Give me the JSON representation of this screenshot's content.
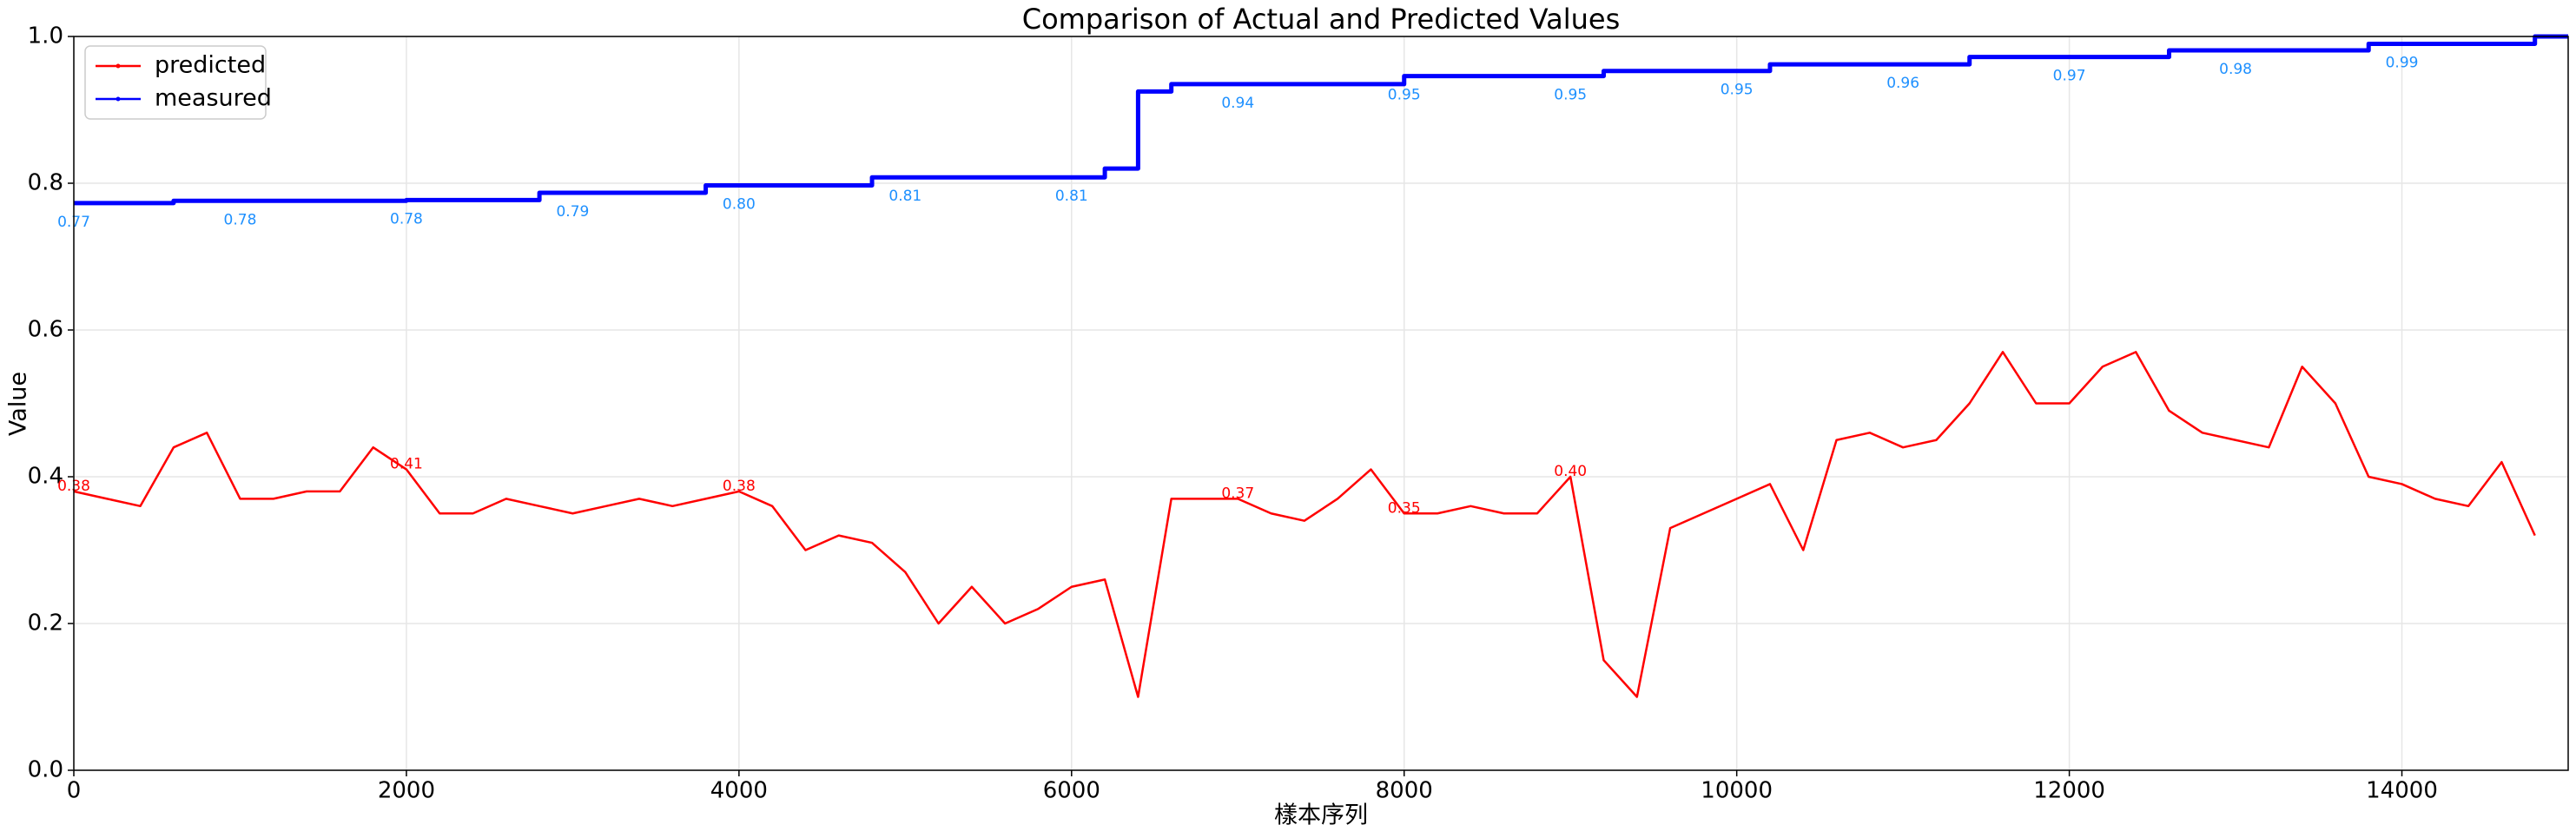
{
  "chart_data": {
    "type": "line",
    "title": "Comparison of Actual and Predicted Values",
    "xlabel": "樣本序列",
    "ylabel": "Value",
    "xlim": [
      0,
      15000
    ],
    "ylim": [
      0,
      1
    ],
    "xticks": [
      0,
      2000,
      4000,
      6000,
      8000,
      10000,
      12000,
      14000
    ],
    "yticks": [
      {
        "value": 0,
        "label": "0.0"
      },
      0.2,
      0.4,
      0.6,
      0.8,
      {
        "value": 1,
        "label": "1.0"
      }
    ],
    "grid": true,
    "legend": "upper left",
    "x": [
      0,
      200,
      400,
      600,
      800,
      1000,
      1200,
      1400,
      1600,
      1800,
      2000,
      2200,
      2400,
      2600,
      2800,
      3000,
      3200,
      3400,
      3600,
      3800,
      4000,
      4200,
      4400,
      4600,
      4800,
      5000,
      5200,
      5400,
      5600,
      5800,
      6000,
      6200,
      6400,
      6600,
      6800,
      7000,
      7200,
      7400,
      7600,
      7800,
      8000,
      8200,
      8400,
      8600,
      8800,
      9000,
      9200,
      9400,
      9600,
      9800,
      10000,
      10200,
      10400,
      10600,
      10800,
      11000,
      11200,
      11400,
      11600,
      11800,
      12000,
      12200,
      12400,
      12600,
      12800,
      13000,
      13200,
      13400,
      13600,
      13800,
      14000,
      14200,
      14400,
      14600,
      14800
    ],
    "series": [
      {
        "name": "predicted",
        "color": "#ff0000",
        "step": false,
        "values": [
          0.38,
          0.37,
          0.36,
          0.44,
          0.46,
          0.37,
          0.37,
          0.38,
          0.38,
          0.44,
          0.41,
          0.35,
          0.35,
          0.37,
          0.36,
          0.35,
          0.36,
          0.37,
          0.36,
          0.37,
          0.38,
          0.36,
          0.3,
          0.32,
          0.31,
          0.27,
          0.2,
          0.25,
          0.2,
          0.22,
          0.25,
          0.26,
          0.1,
          0.37,
          0.37,
          0.37,
          0.35,
          0.34,
          0.37,
          0.41,
          0.35,
          0.35,
          0.36,
          0.35,
          0.35,
          0.4,
          0.15,
          0.1,
          0.33,
          0.35,
          0.37,
          0.39,
          0.3,
          0.45,
          0.46,
          0.44,
          0.45,
          0.5,
          0.57,
          0.5,
          0.5,
          0.55,
          0.57,
          0.49,
          0.46,
          0.45,
          0.44,
          0.55,
          0.5,
          0.4,
          0.39,
          0.37,
          0.36,
          0.42,
          0.32
        ],
        "value_labels": [
          "0.38",
          null,
          null,
          null,
          null,
          null,
          null,
          null,
          null,
          null,
          "0.41",
          null,
          null,
          null,
          null,
          null,
          null,
          null,
          null,
          null,
          "0.38",
          null,
          null,
          null,
          null,
          null,
          null,
          null,
          null,
          null,
          null,
          null,
          null,
          null,
          null,
          "0.37",
          null,
          null,
          null,
          null,
          "0.35",
          null,
          null,
          null,
          null,
          "0.40",
          null,
          null,
          null,
          null,
          null,
          null,
          null,
          null,
          null,
          null,
          null,
          null,
          null,
          null,
          null,
          null,
          null,
          null,
          null,
          null,
          null,
          null,
          null,
          null,
          null,
          null,
          null,
          null,
          null
        ]
      },
      {
        "name": "measured",
        "color": "#0000ff",
        "step": true,
        "label_color": "#1e90ff",
        "values": [
          0.773,
          0.773,
          0.773,
          0.776,
          0.776,
          0.776,
          0.776,
          0.776,
          0.776,
          0.776,
          0.777,
          0.777,
          0.777,
          0.777,
          0.787,
          0.787,
          0.787,
          0.787,
          0.787,
          0.797,
          0.797,
          0.797,
          0.797,
          0.797,
          0.808,
          0.808,
          0.808,
          0.808,
          0.808,
          0.808,
          0.808,
          0.82,
          0.925,
          0.935,
          0.935,
          0.935,
          0.935,
          0.935,
          0.935,
          0.935,
          0.946,
          0.946,
          0.946,
          0.946,
          0.946,
          0.946,
          0.953,
          0.953,
          0.953,
          0.953,
          0.953,
          0.962,
          0.962,
          0.962,
          0.962,
          0.962,
          0.962,
          0.972,
          0.972,
          0.972,
          0.972,
          0.972,
          0.972,
          0.981,
          0.981,
          0.981,
          0.981,
          0.981,
          0.981,
          0.99,
          0.99,
          0.99,
          0.99,
          0.99,
          1.0
        ],
        "value_labels": [
          "0.77",
          null,
          null,
          null,
          null,
          "0.78",
          null,
          null,
          null,
          null,
          "0.78",
          null,
          null,
          null,
          null,
          "0.79",
          null,
          null,
          null,
          null,
          "0.80",
          null,
          null,
          null,
          null,
          "0.81",
          null,
          null,
          null,
          null,
          "0.81",
          null,
          null,
          null,
          null,
          "0.94",
          null,
          null,
          null,
          null,
          "0.95",
          null,
          null,
          null,
          null,
          "0.95",
          null,
          null,
          null,
          null,
          "0.95",
          null,
          null,
          null,
          null,
          "0.96",
          null,
          null,
          null,
          null,
          "0.97",
          null,
          null,
          null,
          null,
          "0.98",
          null,
          null,
          null,
          null,
          "0.99",
          null,
          null,
          null,
          null
        ]
      }
    ]
  }
}
